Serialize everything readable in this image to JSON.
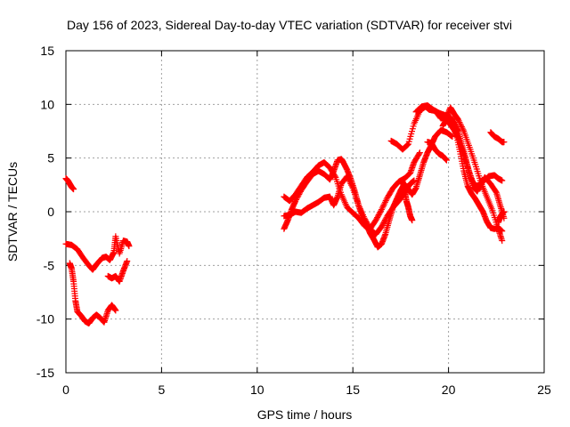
{
  "chart_data": {
    "type": "scatter",
    "title": "Day 156 of 2023, Sidereal Day-to-day VTEC variation (SDTVAR) for receiver stvi",
    "xlabel": "GPS time / hours",
    "ylabel": "SDTVAR / TECUs",
    "xlim": [
      0,
      25
    ],
    "ylim": [
      -15,
      15
    ],
    "x_ticks": [
      0,
      5,
      10,
      15,
      20,
      25
    ],
    "y_ticks": [
      -15,
      -10,
      -5,
      0,
      5,
      10,
      15
    ],
    "grid": true,
    "marker": "plus",
    "color": "#ff0000",
    "series": [
      {
        "id": "a",
        "x": [
          0.0,
          0.1,
          0.2,
          0.3,
          0.4
        ],
        "y": [
          3.1,
          2.9,
          2.6,
          2.3,
          2.1
        ]
      },
      {
        "id": "b",
        "x": [
          0.0,
          0.3,
          0.6,
          0.9,
          1.2,
          1.4,
          1.6,
          1.9,
          2.1,
          2.3,
          2.5,
          2.6,
          2.8,
          3.0,
          3.2,
          3.3
        ],
        "y": [
          -3.0,
          -3.1,
          -3.5,
          -4.3,
          -5.0,
          -5.4,
          -4.9,
          -4.3,
          -4.2,
          -4.5,
          -3.8,
          -2.3,
          -3.9,
          -2.7,
          -2.8,
          -3.2
        ]
      },
      {
        "id": "c",
        "x": [
          0.2,
          0.3,
          0.4,
          0.5,
          0.6,
          0.8,
          1.0,
          1.2,
          1.4,
          1.6,
          1.8,
          2.0,
          2.2,
          2.4,
          2.6
        ],
        "y": [
          -4.8,
          -5.3,
          -6.5,
          -8.3,
          -9.3,
          -9.7,
          -10.2,
          -10.4,
          -9.9,
          -9.6,
          -9.9,
          -10.3,
          -9.2,
          -8.7,
          -9.2
        ]
      },
      {
        "id": "d",
        "x": [
          2.2,
          2.4,
          2.6,
          2.8,
          3.0,
          3.2
        ],
        "y": [
          -6.0,
          -6.2,
          -6.0,
          -6.5,
          -5.5,
          -4.6
        ]
      },
      {
        "id": "e",
        "x": [
          11.4,
          11.6,
          11.8,
          12.0,
          12.3,
          12.6,
          12.9,
          13.2,
          13.5,
          13.8,
          14.0,
          14.2,
          14.4,
          14.5,
          14.7,
          14.9,
          15.1,
          15.3,
          15.5,
          15.7,
          15.9,
          16.1,
          16.3,
          16.5,
          16.7,
          16.9,
          17.1,
          17.3,
          17.5,
          17.7,
          17.9,
          18.1,
          18.3,
          18.5,
          18.7,
          18.9,
          19.1,
          19.3,
          19.6,
          19.9,
          20.2
        ],
        "y": [
          -1.6,
          -0.8,
          0.2,
          1.0,
          2.0,
          2.8,
          3.5,
          3.8,
          3.5,
          3.0,
          3.8,
          4.8,
          4.9,
          4.6,
          3.9,
          3.0,
          1.9,
          0.6,
          -0.5,
          -1.2,
          -2.0,
          -2.6,
          -3.3,
          -3.0,
          -2.1,
          -0.8,
          0.4,
          1.2,
          2.0,
          2.6,
          2.1,
          1.6,
          2.2,
          3.4,
          4.6,
          5.5,
          6.2,
          7.0,
          7.6,
          7.4,
          7.0
        ]
      },
      {
        "id": "f",
        "x": [
          11.4,
          11.7,
          12.0,
          12.3,
          12.6,
          12.9,
          13.2,
          13.5,
          13.8,
          14.1,
          14.4,
          14.7,
          15.0,
          15.3,
          15.6,
          15.9,
          16.2,
          16.5,
          16.8,
          17.1,
          17.4,
          17.7,
          18.0,
          18.2,
          18.5
        ],
        "y": [
          1.4,
          1.0,
          1.6,
          2.4,
          3.2,
          3.7,
          4.3,
          4.6,
          4.1,
          3.2,
          1.6,
          0.4,
          -0.1,
          -0.6,
          -1.3,
          -1.6,
          -0.8,
          0.2,
          1.3,
          2.2,
          2.8,
          3.1,
          3.6,
          4.6,
          5.5
        ]
      },
      {
        "id": "g",
        "x": [
          11.4,
          11.7,
          12.0,
          12.3,
          12.6,
          12.9,
          13.2,
          13.5,
          13.8,
          14.0,
          14.2,
          14.4,
          14.7,
          15.0,
          15.3,
          15.6,
          15.9,
          16.2,
          16.5,
          16.8,
          17.1,
          17.4,
          17.6,
          17.8,
          18.0,
          18.2
        ],
        "y": [
          -0.4,
          -0.3,
          0.0,
          -0.1,
          0.3,
          0.6,
          0.9,
          1.3,
          1.4,
          0.6,
          1.4,
          2.6,
          3.3,
          2.2,
          0.6,
          -0.6,
          -1.6,
          -2.1,
          -1.4,
          -0.4,
          0.4,
          1.0,
          1.5,
          2.1,
          2.6,
          2.9
        ]
      },
      {
        "id": "h",
        "x": [
          17.6,
          17.7,
          17.8,
          17.9,
          18.0,
          18.1
        ],
        "y": [
          2.8,
          2.0,
          1.0,
          0.4,
          -0.4,
          -0.8
        ]
      },
      {
        "id": "i",
        "x": [
          17.0,
          17.3,
          17.6,
          17.9,
          18.2,
          18.5,
          18.8,
          19.0,
          19.3,
          19.6,
          19.9,
          20.1,
          20.3,
          20.5,
          20.8,
          21.1,
          21.4,
          21.7,
          22.0,
          22.3,
          22.6,
          22.8
        ],
        "y": [
          6.6,
          6.3,
          5.8,
          6.3,
          8.2,
          9.4,
          9.8,
          9.5,
          9.4,
          8.7,
          8.8,
          9.7,
          9.1,
          8.6,
          7.5,
          6.0,
          4.4,
          2.7,
          1.4,
          0.1,
          -1.6,
          -2.7
        ]
      },
      {
        "id": "j",
        "x": [
          18.3,
          18.6,
          18.9,
          19.2,
          19.5,
          19.8,
          20.1,
          20.3,
          20.5,
          20.7,
          20.9,
          21.1,
          21.3,
          21.5,
          21.7,
          21.9,
          22.2,
          22.5,
          22.7,
          22.9
        ],
        "y": [
          9.3,
          9.8,
          9.9,
          9.5,
          9.2,
          9.0,
          8.8,
          8.2,
          7.5,
          6.2,
          5.0,
          3.5,
          2.3,
          1.9,
          2.6,
          3.2,
          2.6,
          1.8,
          0.6,
          -0.6
        ]
      },
      {
        "id": "k",
        "x": [
          18.9,
          19.1,
          19.3,
          19.5,
          19.7,
          19.9
        ],
        "y": [
          6.5,
          6.4,
          5.8,
          5.4,
          5.2,
          4.8
        ]
      },
      {
        "id": "l",
        "x": [
          19.7,
          19.9,
          20.1,
          20.3,
          20.5,
          20.7,
          20.9,
          21.1,
          21.3,
          21.5,
          21.8,
          22.1,
          22.4,
          22.6,
          22.8
        ],
        "y": [
          8.0,
          8.6,
          8.1,
          7.6,
          6.9,
          5.8,
          4.7,
          3.6,
          2.6,
          2.4,
          2.8,
          3.3,
          3.4,
          3.1,
          2.9
        ]
      },
      {
        "id": "m",
        "x": [
          20.2,
          20.4,
          20.6,
          20.8,
          21.0,
          21.2,
          21.4,
          21.6,
          21.8,
          22.0,
          22.2,
          22.4,
          22.6,
          22.8
        ],
        "y": [
          8.6,
          7.3,
          5.6,
          3.8,
          2.4,
          1.7,
          1.2,
          0.6,
          0.0,
          -0.9,
          -1.5,
          -1.6,
          -1.5,
          -1.8
        ]
      },
      {
        "id": "n",
        "x": [
          22.2,
          22.4,
          22.6,
          22.8,
          22.9
        ],
        "y": [
          7.4,
          7.0,
          6.8,
          6.5,
          6.5
        ]
      },
      {
        "id": "o",
        "x": [
          22.6,
          22.7,
          22.8,
          22.9
        ],
        "y": [
          -1.0,
          -0.5,
          -0.2,
          0.0
        ]
      }
    ]
  }
}
